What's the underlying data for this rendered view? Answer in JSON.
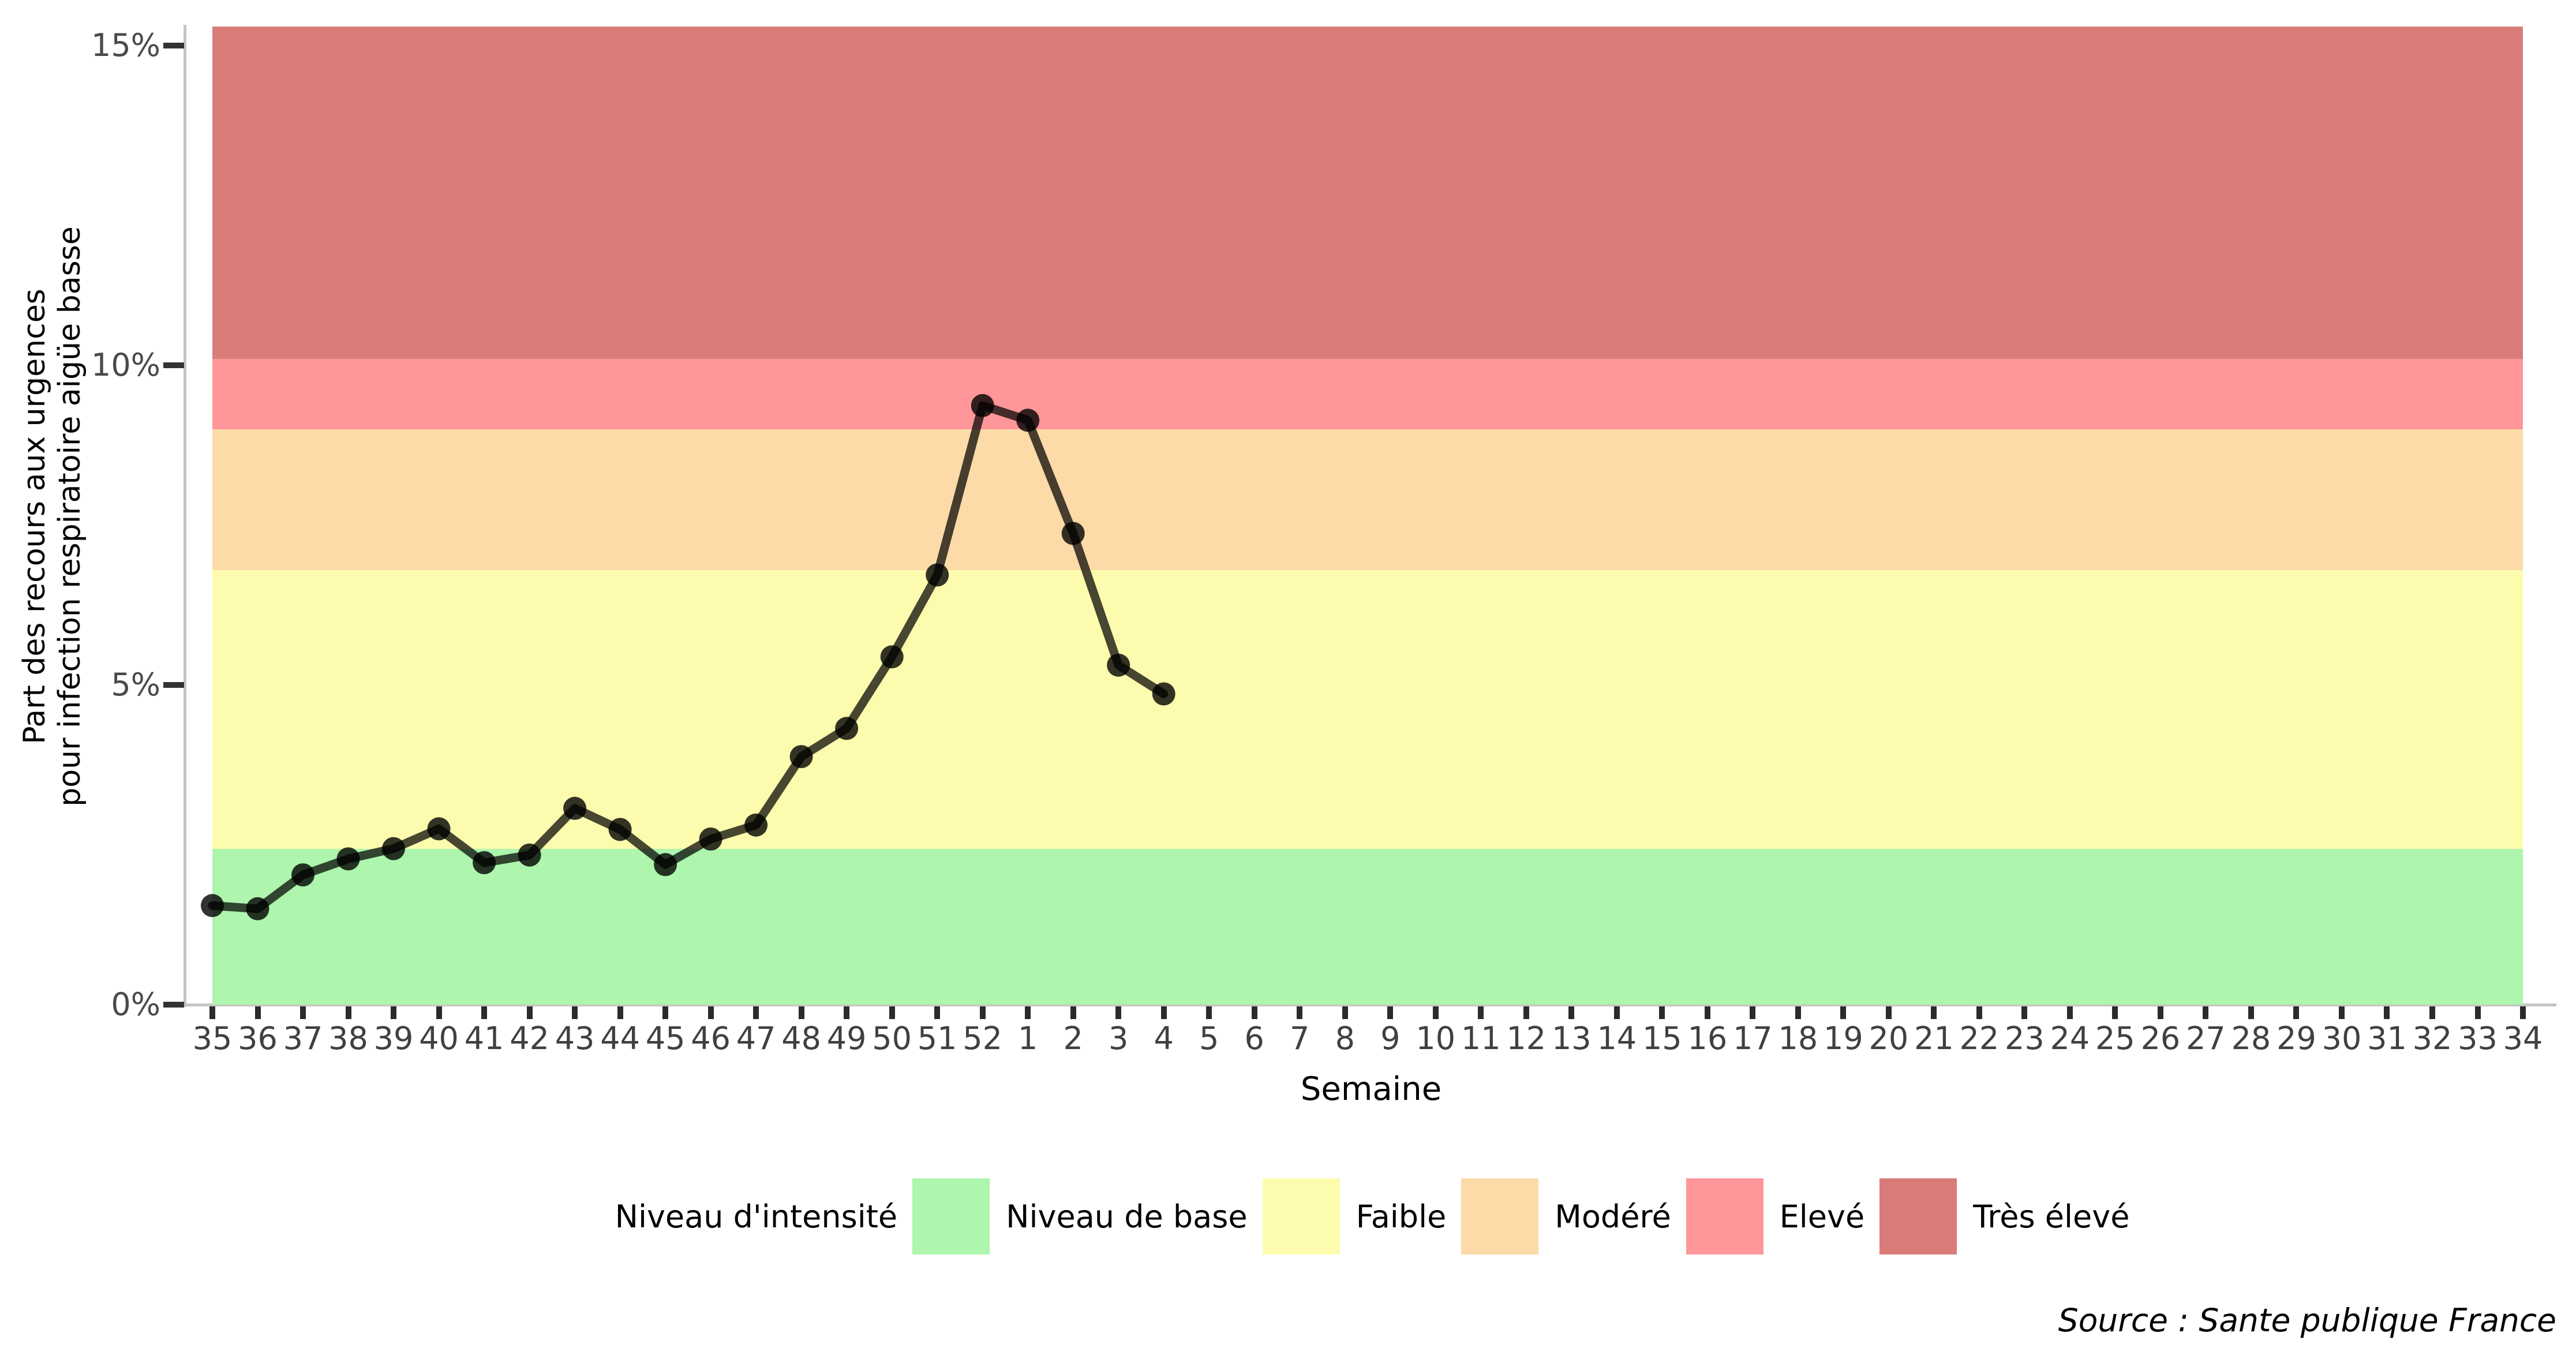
{
  "figure": {
    "y_axis": {
      "title_line1": "Part des recours aux urgences",
      "title_line2": "pour infection respiratoire aigüe basse",
      "ticks": [
        {
          "label": "0%",
          "value": 0
        },
        {
          "label": "5%",
          "value": 5
        },
        {
          "label": "10%",
          "value": 10
        },
        {
          "label": "15%",
          "value": 15
        }
      ]
    },
    "x_axis": {
      "title": "Semaine",
      "categories": [
        "35",
        "36",
        "37",
        "38",
        "39",
        "40",
        "41",
        "42",
        "43",
        "44",
        "45",
        "46",
        "47",
        "48",
        "49",
        "50",
        "51",
        "52",
        "1",
        "2",
        "3",
        "4",
        "5",
        "6",
        "7",
        "8",
        "9",
        "10",
        "11",
        "12",
        "13",
        "14",
        "15",
        "16",
        "17",
        "18",
        "19",
        "20",
        "21",
        "22",
        "23",
        "24",
        "25",
        "26",
        "27",
        "28",
        "29",
        "30",
        "31",
        "32",
        "33",
        "34"
      ]
    },
    "legend": {
      "title": "Niveau d'intensité",
      "items": [
        {
          "label": "Niveau de base",
          "color": "#aef5ad"
        },
        {
          "label": "Faible",
          "color": "#fdfcae"
        },
        {
          "label": "Modéré",
          "color": "#fcdba8"
        },
        {
          "label": "Elevé",
          "color": "#ff9699"
        },
        {
          "label": "Très élevé",
          "color": "#d97c79"
        }
      ]
    },
    "source": "Source : Sante publique France",
    "colors": {
      "axis_line": "#c4c4c4",
      "tick_mark": "#2b2b2b",
      "tick_text": "#404040",
      "series": "#000000"
    }
  },
  "chart_data": {
    "type": "line",
    "title": "",
    "xlabel": "Semaine",
    "ylabel": "Part des recours aux urgences pour infection respiratoire aigüe basse",
    "ylim": [
      0,
      15.3
    ],
    "x_categories_full": [
      "35",
      "36",
      "37",
      "38",
      "39",
      "40",
      "41",
      "42",
      "43",
      "44",
      "45",
      "46",
      "47",
      "48",
      "49",
      "50",
      "51",
      "52",
      "1",
      "2",
      "3",
      "4",
      "5",
      "6",
      "7",
      "8",
      "9",
      "10",
      "11",
      "12",
      "13",
      "14",
      "15",
      "16",
      "17",
      "18",
      "19",
      "20",
      "21",
      "22",
      "23",
      "24",
      "25",
      "26",
      "27",
      "28",
      "29",
      "30",
      "31",
      "32",
      "33",
      "34"
    ],
    "series": [
      {
        "name": "Part des recours aux urgences (%)",
        "x": [
          "35",
          "36",
          "37",
          "38",
          "39",
          "40",
          "41",
          "42",
          "43",
          "44",
          "45",
          "46",
          "47",
          "48",
          "49",
          "50",
          "51",
          "52",
          "1",
          "2",
          "3",
          "4"
        ],
        "values": [
          1.55,
          1.5,
          2.03,
          2.28,
          2.44,
          2.75,
          2.22,
          2.34,
          3.07,
          2.74,
          2.19,
          2.59,
          2.81,
          3.88,
          4.32,
          5.44,
          6.72,
          9.37,
          9.14,
          7.37,
          5.31,
          4.86
        ]
      }
    ],
    "bands": [
      {
        "name": "Niveau de base",
        "min": 0,
        "max": 2.44,
        "color": "#aef5ad"
      },
      {
        "name": "Faible",
        "min": 2.44,
        "max": 6.8,
        "color": "#fdfcae"
      },
      {
        "name": "Modéré",
        "min": 6.8,
        "max": 9.0,
        "color": "#fcdba8"
      },
      {
        "name": "Elevé",
        "min": 9.0,
        "max": 10.1,
        "color": "#ff9699"
      },
      {
        "name": "Très élevé",
        "min": 10.1,
        "max": 15.3,
        "color": "#d97c79"
      }
    ],
    "legend_position": "bottom",
    "grid": false
  }
}
